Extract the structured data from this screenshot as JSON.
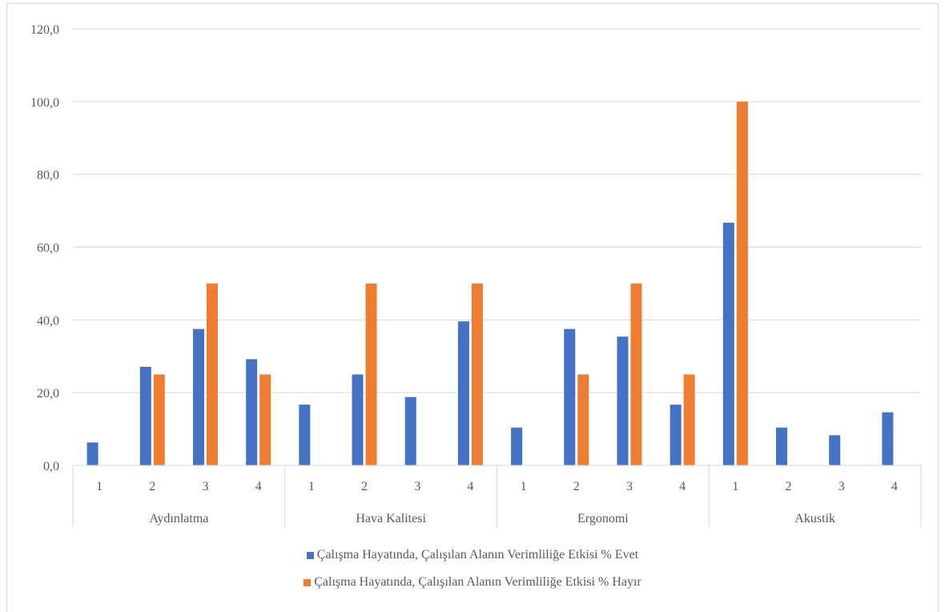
{
  "chart_data": {
    "type": "bar",
    "group_labels": [
      "Aydınlatma",
      "Hava Kalitesi",
      "Ergonomi",
      "Akustik"
    ],
    "sub_labels": [
      "1",
      "2",
      "3",
      "4"
    ],
    "series": [
      {
        "name": "Çalışma Hayatında, Çalışılan Alanın Verimliliğe Etkisi % Evet",
        "color": "#4472C4",
        "values": [
          6.3,
          27.1,
          37.5,
          29.2,
          16.7,
          25.0,
          18.8,
          39.6,
          10.4,
          37.5,
          35.4,
          16.7,
          66.7,
          10.4,
          8.3,
          14.6
        ]
      },
      {
        "name": "Çalışma Hayatında, Çalışılan Alanın Verimliliğe Etkisi % Hayır",
        "color": "#ED7D31",
        "values": [
          0,
          25.0,
          50.0,
          25.0,
          0,
          50.0,
          0,
          50.0,
          0,
          25.0,
          50.0,
          25.0,
          100.0,
          0,
          0,
          0
        ]
      }
    ],
    "ylim": [
      0,
      120
    ],
    "yticks": [
      "0,0",
      "20,0",
      "40,0",
      "60,0",
      "80,0",
      "100,0",
      "120,0"
    ],
    "grid": true,
    "legend_position": "bottom"
  }
}
